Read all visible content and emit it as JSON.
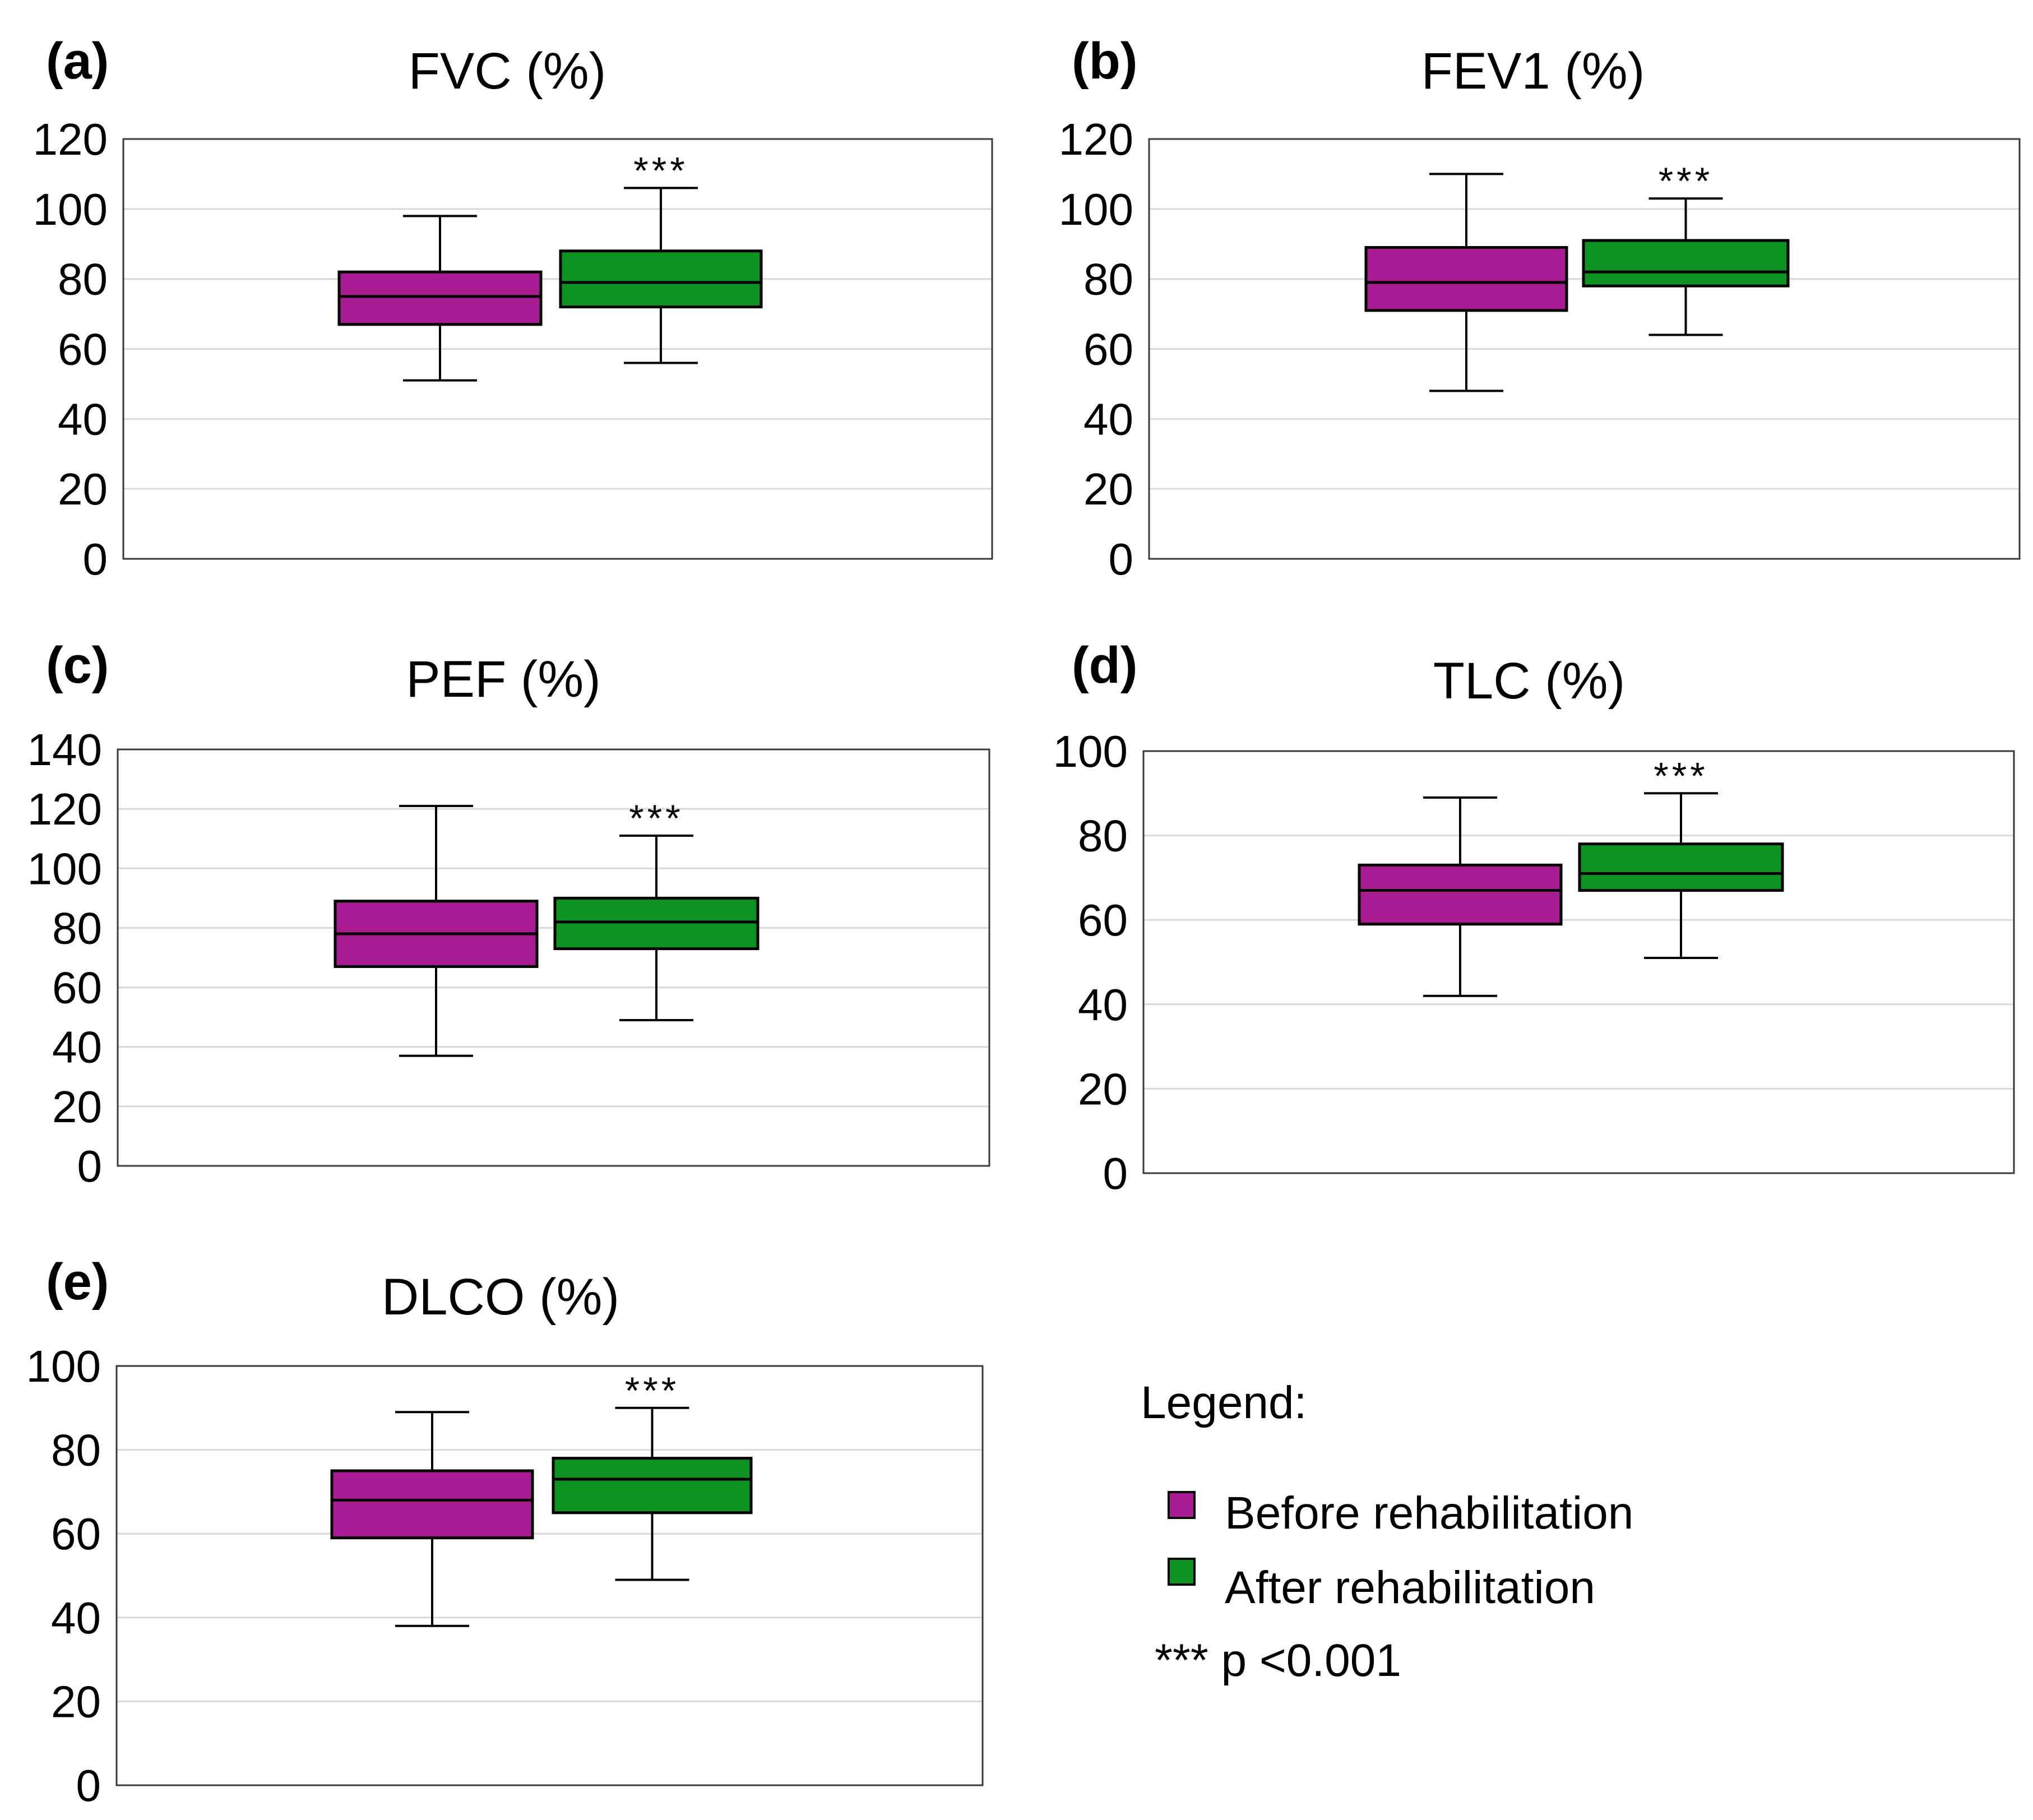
{
  "colors": {
    "before": "#a81b92",
    "after": "#0b9220",
    "grid": "#d9d9d9",
    "axis": "#000000"
  },
  "chart_data": [
    {
      "type": "boxplot",
      "panel_label": "(a)",
      "title": "FVC (%)",
      "ylim": [
        0,
        120
      ],
      "yticks": [
        "0",
        "20",
        "40",
        "60",
        "80",
        "100",
        "120"
      ],
      "ytick_values": [
        0,
        20,
        40,
        60,
        80,
        100,
        120
      ],
      "grid": true,
      "series": [
        {
          "name": "Before rehabilitation",
          "min": 51,
          "q1": 67,
          "median": 75,
          "q3": 82,
          "max": 98
        },
        {
          "name": "After rehabilitation",
          "min": 56,
          "q1": 72,
          "median": 79,
          "q3": 88,
          "max": 106
        }
      ],
      "annotation": "***"
    },
    {
      "type": "boxplot",
      "panel_label": "(b)",
      "title": "FEV1 (%)",
      "ylim": [
        0,
        120
      ],
      "yticks": [
        "0",
        "20",
        "40",
        "60",
        "80",
        "100",
        "120"
      ],
      "ytick_values": [
        0,
        20,
        40,
        60,
        80,
        100,
        120
      ],
      "grid": true,
      "series": [
        {
          "name": "Before rehabilitation",
          "min": 48,
          "q1": 71,
          "median": 79,
          "q3": 89,
          "max": 110
        },
        {
          "name": "After rehabilitation",
          "min": 64,
          "q1": 78,
          "median": 82,
          "q3": 91,
          "max": 103
        }
      ],
      "annotation": "***"
    },
    {
      "type": "boxplot",
      "panel_label": "(c)",
      "title": "PEF (%)",
      "ylim": [
        0,
        140
      ],
      "yticks": [
        "0",
        "20",
        "40",
        "60",
        "80",
        "100",
        "120",
        "140"
      ],
      "ytick_values": [
        0,
        20,
        40,
        60,
        80,
        100,
        120,
        140
      ],
      "grid": true,
      "series": [
        {
          "name": "Before rehabilitation",
          "min": 37,
          "q1": 67,
          "median": 78,
          "q3": 89,
          "max": 121
        },
        {
          "name": "After rehabilitation",
          "min": 49,
          "q1": 73,
          "median": 82,
          "q3": 90,
          "max": 111
        }
      ],
      "annotation": "***"
    },
    {
      "type": "boxplot",
      "panel_label": "(d)",
      "title": "TLC (%)",
      "ylim": [
        0,
        100
      ],
      "yticks": [
        "0",
        "20",
        "40",
        "60",
        "80",
        "100"
      ],
      "ytick_values": [
        0,
        20,
        40,
        60,
        80,
        100
      ],
      "grid": true,
      "series": [
        {
          "name": "Before rehabilitation",
          "min": 42,
          "q1": 59,
          "median": 67,
          "q3": 73,
          "max": 89
        },
        {
          "name": "After rehabilitation",
          "min": 51,
          "q1": 67,
          "median": 71,
          "q3": 78,
          "max": 90
        }
      ],
      "annotation": "***"
    },
    {
      "type": "boxplot",
      "panel_label": "(e)",
      "title": "DLCO (%)",
      "ylim": [
        0,
        100
      ],
      "yticks": [
        "0",
        "20",
        "40",
        "60",
        "80",
        "100"
      ],
      "ytick_values": [
        0,
        20,
        40,
        60,
        80,
        100
      ],
      "grid": true,
      "series": [
        {
          "name": "Before rehabilitation",
          "min": 38,
          "q1": 59,
          "median": 68,
          "q3": 75,
          "max": 89
        },
        {
          "name": "After rehabilitation",
          "min": 49,
          "q1": 65,
          "median": 73,
          "q3": 78,
          "max": 90
        }
      ],
      "annotation": "***"
    }
  ],
  "legend": {
    "title": "Legend:",
    "items": [
      {
        "label": "Before rehabilitation",
        "color": "#a81b92"
      },
      {
        "label": "After rehabilitation",
        "color": "#0b9220"
      }
    ],
    "note": "*** p <0.001"
  }
}
